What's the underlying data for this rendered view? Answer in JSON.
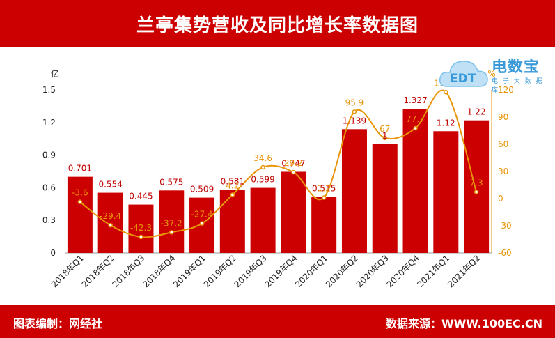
{
  "header": {
    "title": "兰亭集势营收及同比增长率数据图"
  },
  "footer": {
    "left": "图表编制：网经社",
    "right": "数据来源：WWW.100EC.CN"
  },
  "logo": {
    "name": "电数宝",
    "sub": "电 子 大 数 据 库",
    "mark": "EDT"
  },
  "colors": {
    "brand": "#cc0000",
    "bar": "#cc0000",
    "line": "#e8950a",
    "bar_label": "#c00000",
    "line_label": "#e8950a",
    "logo": "#3a9ad9"
  },
  "chart_data": {
    "type": "bar",
    "categories": [
      "2018年Q1",
      "2018年Q2",
      "2018年Q3",
      "2018年Q4",
      "2019年Q1",
      "2019年Q2",
      "2019年Q3",
      "2019年Q4",
      "2020年Q1",
      "2020年Q2",
      "2020年Q3",
      "2020年Q4",
      "2021年Q1",
      "2021年Q2"
    ],
    "series": [
      {
        "type": "bar",
        "axis": "left",
        "values": [
          0.701,
          0.554,
          0.445,
          0.575,
          0.509,
          0.581,
          0.599,
          0.747,
          0.515,
          1.139,
          1,
          1.327,
          1.12,
          1.22
        ]
      },
      {
        "type": "line",
        "axis": "right",
        "smooth": true,
        "values": [
          -3.6,
          -29.4,
          -42.3,
          -37.2,
          -27.4,
          4.2,
          34.6,
          29.2,
          1.2,
          95.9,
          67,
          77.7,
          117.5,
          7.3
        ]
      }
    ],
    "yleft": {
      "label": "亿",
      "ticks": [
        "0",
        "0.3",
        "0.6",
        "0.9",
        "1.2",
        "1.5"
      ],
      "range": [
        0,
        1.5
      ]
    },
    "yright": {
      "label": "%",
      "ticks": [
        "-60",
        "-30",
        "0",
        "30",
        "60",
        "90",
        "120"
      ],
      "range": [
        -60,
        120
      ]
    },
    "bar_labels": [
      "0.701",
      "0.554",
      "0.445",
      "0.575",
      "0.509",
      "0.581",
      "0.599",
      "0.747",
      "0.515",
      "1.139",
      "1",
      "1.327",
      "1.12",
      "1.22"
    ],
    "line_labels": [
      "-3.6",
      "-29.4",
      "-42.3",
      "-37.2",
      "-27.4",
      "4.2",
      "34.6",
      "29.2",
      "1.2",
      "95.9",
      "67",
      "77.7",
      "117.5",
      "7.3"
    ]
  }
}
